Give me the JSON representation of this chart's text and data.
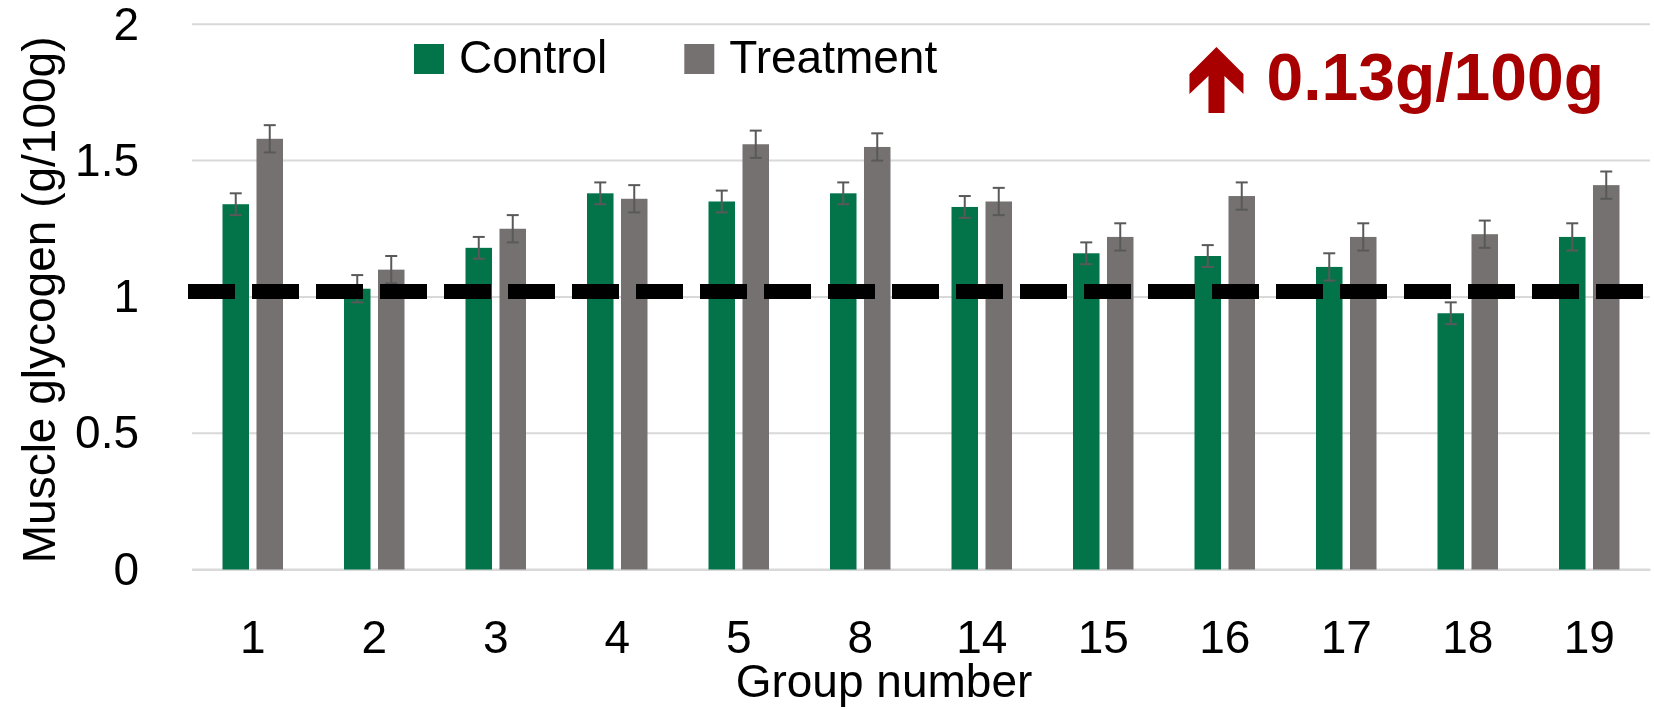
{
  "chart_data": {
    "type": "bar",
    "xlabel": "Group number",
    "ylabel": "Muscle glycogen (g/100g)",
    "categories": [
      "1",
      "2",
      "3",
      "4",
      "5",
      "8",
      "14",
      "15",
      "16",
      "17",
      "18",
      "19"
    ],
    "series": [
      {
        "name": "Control",
        "color": "#03744a",
        "values": [
          1.34,
          1.03,
          1.18,
          1.38,
          1.35,
          1.38,
          1.33,
          1.16,
          1.15,
          1.11,
          0.94,
          1.22
        ],
        "errors": [
          0.04,
          0.05,
          0.04,
          0.04,
          0.04,
          0.04,
          0.04,
          0.04,
          0.04,
          0.05,
          0.04,
          0.05
        ]
      },
      {
        "name": "Treatment",
        "color": "#767171",
        "values": [
          1.58,
          1.1,
          1.25,
          1.36,
          1.56,
          1.55,
          1.35,
          1.22,
          1.37,
          1.22,
          1.23,
          1.41
        ],
        "errors": [
          0.05,
          0.05,
          0.05,
          0.05,
          0.05,
          0.05,
          0.05,
          0.05,
          0.05,
          0.05,
          0.05,
          0.05
        ]
      }
    ],
    "ylim": [
      0,
      2
    ],
    "yticks": [
      0,
      0.5,
      1,
      1.5,
      2
    ],
    "grid": "y",
    "legend": "top",
    "ref_lines": [
      {
        "axis": "y",
        "value": 1.02,
        "color": "#000000",
        "line_style": "dashed"
      }
    ],
    "annotations": [
      "0.13g/100g"
    ]
  }
}
